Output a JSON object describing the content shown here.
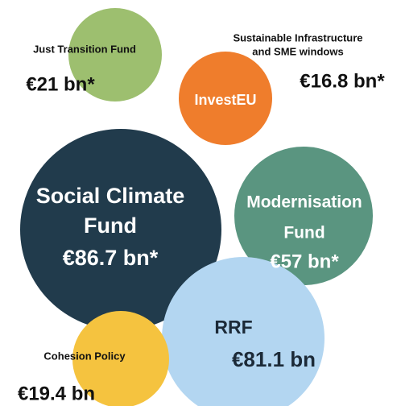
{
  "nodes": [
    {
      "label": [
        "Just Transition Fund"
      ],
      "value": "€21 bn*",
      "color": "#9dbf6f"
    },
    {
      "label": [
        "InvestEU"
      ],
      "caption": [
        "Sustainable Infrastructure",
        "and SME windows"
      ],
      "value": "€16.8 bn*",
      "color": "#ef7d2c"
    },
    {
      "label": [
        "Social Climate",
        "Fund"
      ],
      "value": "€86.7 bn*",
      "color": "#213b4c"
    },
    {
      "label": [
        "Modernisation",
        "Fund"
      ],
      "value": "€57 bn*",
      "color": "#5a9580"
    },
    {
      "label": [
        "RRF"
      ],
      "value": "€81.1 bn",
      "color": "#b3d6f1"
    },
    {
      "label": [
        "Cohesion Policy"
      ],
      "value": "€19.4 bn",
      "color": "#f5c33f"
    }
  ]
}
